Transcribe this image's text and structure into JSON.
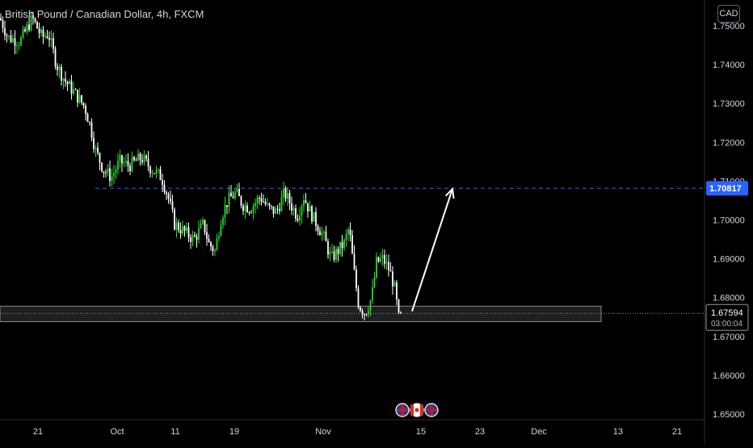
{
  "header": {
    "symbol_title": "British Pound / Canadian Dollar, 4h, FXCM",
    "currency": "CAD"
  },
  "price_scale": {
    "last_price": "1.67594",
    "countdown": "03:00:04",
    "target_label": "1.70817"
  },
  "colors": {
    "background": "#000000",
    "candle": "#26a69a",
    "up_candle": "#2bd92b",
    "down_candle": "#ffffff",
    "target_line": "#2962ff",
    "arrow": "#ffffff",
    "zone_border": "#8a8a8a"
  },
  "icons": [
    "uk-flag-icon",
    "canada-flag-icon",
    "uk-flag-icon"
  ],
  "chart_data": {
    "type": "candlestick",
    "title": "British Pound / Canadian Dollar, 4h, FXCM",
    "y_ticks": [
      "1.75000",
      "1.74000",
      "1.73000",
      "1.72000",
      "1.71000",
      "1.70000",
      "1.69000",
      "1.68000",
      "1.67000",
      "1.66000",
      "1.65000"
    ],
    "ylim": [
      1.6485,
      1.7535
    ],
    "x_ticks": [
      "21",
      "Oct",
      "11",
      "19",
      "Nov",
      "15",
      "23",
      "Dec",
      "13",
      "21"
    ],
    "price_path": [
      [
        0,
        1.752
      ],
      [
        10,
        1.747
      ],
      [
        25,
        1.746
      ],
      [
        40,
        1.752
      ],
      [
        52,
        1.747
      ],
      [
        60,
        1.748
      ],
      [
        70,
        1.74
      ],
      [
        80,
        1.736
      ],
      [
        95,
        1.732
      ],
      [
        105,
        1.729
      ],
      [
        112,
        1.724
      ],
      [
        118,
        1.718
      ],
      [
        128,
        1.713
      ],
      [
        138,
        1.711
      ],
      [
        148,
        1.715
      ],
      [
        160,
        1.714
      ],
      [
        175,
        1.716
      ],
      [
        188,
        1.713
      ],
      [
        200,
        1.711
      ],
      [
        208,
        1.706
      ],
      [
        216,
        1.699
      ],
      [
        228,
        1.697
      ],
      [
        240,
        1.695
      ],
      [
        252,
        1.699
      ],
      [
        258,
        1.694
      ],
      [
        266,
        1.692
      ],
      [
        274,
        1.701
      ],
      [
        282,
        1.705
      ],
      [
        292,
        1.707
      ],
      [
        300,
        1.704
      ],
      [
        310,
        1.703
      ],
      [
        322,
        1.706
      ],
      [
        332,
        1.703
      ],
      [
        342,
        1.702
      ],
      [
        352,
        1.707
      ],
      [
        360,
        1.704
      ],
      [
        368,
        1.701
      ],
      [
        376,
        1.706
      ],
      [
        384,
        1.702
      ],
      [
        392,
        1.699
      ],
      [
        400,
        1.696
      ],
      [
        410,
        1.69
      ],
      [
        418,
        1.692
      ],
      [
        426,
        1.694
      ],
      [
        432,
        1.698
      ],
      [
        438,
        1.687
      ],
      [
        444,
        1.678
      ],
      [
        452,
        1.676
      ],
      [
        460,
        1.68
      ],
      [
        466,
        1.689
      ],
      [
        474,
        1.69
      ],
      [
        482,
        1.687
      ],
      [
        488,
        1.683
      ],
      [
        494,
        1.674
      ],
      [
        498,
        1.676
      ]
    ],
    "target_level": 1.70817,
    "last_price": 1.67594,
    "support_zone": [
      1.6738,
      1.6778
    ],
    "arrow": {
      "from": {
        "bar_x": 510,
        "price": 1.6765
      },
      "to": {
        "bar_x": 560,
        "price": 1.708
      }
    },
    "legend_position": "none",
    "grid": false
  }
}
